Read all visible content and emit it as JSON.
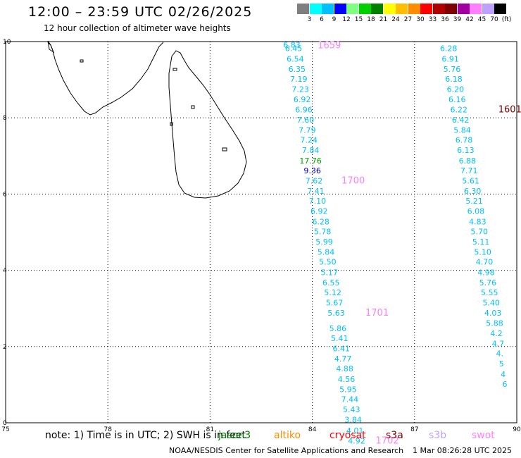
{
  "header": {
    "title": "12:00 – 23:59 UTC 02/26/2025",
    "subtitle": "12 hour collection of altimeter wave heights"
  },
  "colorbar": {
    "unit": "(ft)",
    "colors": [
      "#7f7f7f",
      "#00ffff",
      "#00bfff",
      "#0000ff",
      "#7fff7f",
      "#00d000",
      "#008000",
      "#ffff00",
      "#ffbf00",
      "#ff8c00",
      "#ff0000",
      "#b00000",
      "#800000",
      "#a000a0",
      "#ff80ff",
      "#c0a0ff",
      "#000000"
    ],
    "labels": [
      "3",
      "6",
      "9",
      "12",
      "15",
      "18",
      "21",
      "24",
      "27",
      "30",
      "33",
      "36",
      "39",
      "42",
      "45",
      "70"
    ]
  },
  "map": {
    "lon_ticks": [
      "75",
      "78",
      "81",
      "84",
      "87",
      "90"
    ],
    "lat_ticks": [
      "0",
      "2",
      "4",
      "6",
      "8",
      "10"
    ],
    "lon_range": [
      75,
      90
    ],
    "lat_range": [
      0,
      10
    ]
  },
  "tracks": [
    {
      "name": "track-west",
      "time_label": {
        "text": "1659",
        "lon": 84.5,
        "lat": 9.9,
        "color": "#ff80ff"
      },
      "points": [
        {
          "lon": 83.4,
          "lat": 9.92,
          "v": "6.83",
          "c": "#00bfff"
        },
        {
          "lon": 83.45,
          "lat": 9.82,
          "v": "6.45",
          "c": "#00bfff"
        },
        {
          "lon": 83.5,
          "lat": 9.55,
          "v": "6.54",
          "c": "#00bfff"
        },
        {
          "lon": 83.55,
          "lat": 9.28,
          "v": "6.35",
          "c": "#00bfff"
        },
        {
          "lon": 83.6,
          "lat": 9.02,
          "v": "7.19",
          "c": "#00bfff"
        },
        {
          "lon": 83.65,
          "lat": 8.75,
          "v": "7.23",
          "c": "#00bfff"
        },
        {
          "lon": 83.7,
          "lat": 8.48,
          "v": "6.92",
          "c": "#00bfff"
        },
        {
          "lon": 83.75,
          "lat": 8.22,
          "v": "6.96",
          "c": "#00bfff"
        },
        {
          "lon": 83.8,
          "lat": 7.95,
          "v": "7.60",
          "c": "#00bfff"
        },
        {
          "lon": 83.85,
          "lat": 7.68,
          "v": "7.79",
          "c": "#00bfff"
        },
        {
          "lon": 83.9,
          "lat": 7.42,
          "v": "7.24",
          "c": "#00bfff"
        },
        {
          "lon": 83.95,
          "lat": 7.15,
          "v": "7.84",
          "c": "#00bfff"
        },
        {
          "lon": 83.95,
          "lat": 6.88,
          "v": "17.76",
          "c": "#00a000"
        },
        {
          "lon": 84.0,
          "lat": 6.62,
          "v": "9.36",
          "c": "#0000cc"
        },
        {
          "lon": 84.05,
          "lat": 6.35,
          "v": "7.62",
          "c": "#00bfff"
        },
        {
          "lon": 84.1,
          "lat": 6.08,
          "v": "7.41",
          "c": "#00bfff"
        },
        {
          "lon": 84.15,
          "lat": 5.82,
          "v": "7.10",
          "c": "#00bfff"
        },
        {
          "lon": 84.2,
          "lat": 5.55,
          "v": "6.92",
          "c": "#00bfff"
        },
        {
          "lon": 84.25,
          "lat": 5.28,
          "v": "6.28",
          "c": "#00bfff"
        },
        {
          "lon": 84.3,
          "lat": 5.02,
          "v": "5.78",
          "c": "#00bfff"
        },
        {
          "lon": 84.35,
          "lat": 4.75,
          "v": "5.99",
          "c": "#00bfff"
        },
        {
          "lon": 84.4,
          "lat": 4.48,
          "v": "5.84",
          "c": "#00bfff"
        },
        {
          "lon": 84.45,
          "lat": 4.22,
          "v": "5.50",
          "c": "#00bfff"
        },
        {
          "lon": 84.5,
          "lat": 3.95,
          "v": "5.17",
          "c": "#00bfff"
        },
        {
          "lon": 84.55,
          "lat": 3.68,
          "v": "6.55",
          "c": "#00bfff"
        },
        {
          "lon": 84.6,
          "lat": 3.42,
          "v": "5.12",
          "c": "#00bfff"
        },
        {
          "lon": 84.65,
          "lat": 3.15,
          "v": "5.67",
          "c": "#00bfff"
        },
        {
          "lon": 84.7,
          "lat": 2.88,
          "v": "5.63",
          "c": "#00bfff"
        },
        {
          "lon": 84.75,
          "lat": 2.48,
          "v": "5.86",
          "c": "#00bfff"
        },
        {
          "lon": 84.8,
          "lat": 2.22,
          "v": "5.41",
          "c": "#00bfff"
        },
        {
          "lon": 84.85,
          "lat": 1.95,
          "v": "6.41",
          "c": "#00bfff"
        },
        {
          "lon": 84.9,
          "lat": 1.68,
          "v": "4.77",
          "c": "#00bfff"
        },
        {
          "lon": 84.95,
          "lat": 1.42,
          "v": "4.88",
          "c": "#00bfff"
        },
        {
          "lon": 85.0,
          "lat": 1.15,
          "v": "4.56",
          "c": "#00bfff"
        },
        {
          "lon": 85.05,
          "lat": 0.88,
          "v": "5.95",
          "c": "#00bfff"
        },
        {
          "lon": 85.1,
          "lat": 0.62,
          "v": "7.44",
          "c": "#00bfff"
        },
        {
          "lon": 85.15,
          "lat": 0.35,
          "v": "5.43",
          "c": "#00bfff"
        },
        {
          "lon": 85.2,
          "lat": 0.08,
          "v": "3.84",
          "c": "#00bfff"
        },
        {
          "lon": 85.25,
          "lat": -0.2,
          "v": "4.01",
          "c": "#00bfff"
        },
        {
          "lon": 85.3,
          "lat": -0.47,
          "v": "4.92",
          "c": "#00bfff"
        }
      ],
      "extra_labels": [
        {
          "text": "1700",
          "lon": 85.2,
          "lat": 6.35,
          "color": "#ff80ff"
        },
        {
          "text": "1701",
          "lon": 85.9,
          "lat": 2.88,
          "color": "#ff80ff"
        },
        {
          "text": "1702",
          "lon": 86.2,
          "lat": -0.47,
          "color": "#ff80ff"
        }
      ]
    },
    {
      "name": "track-east",
      "time_label": {
        "text": "1601",
        "lon": 89.8,
        "lat": 8.22,
        "color": "#800000"
      },
      "points": [
        {
          "lon": 88.0,
          "lat": 9.82,
          "v": "6.28",
          "c": "#00bfff"
        },
        {
          "lon": 88.05,
          "lat": 9.55,
          "v": "6.91",
          "c": "#00bfff"
        },
        {
          "lon": 88.1,
          "lat": 9.28,
          "v": "5.76",
          "c": "#00bfff"
        },
        {
          "lon": 88.15,
          "lat": 9.02,
          "v": "6.18",
          "c": "#00bfff"
        },
        {
          "lon": 88.2,
          "lat": 8.75,
          "v": "6.20",
          "c": "#00bfff"
        },
        {
          "lon": 88.25,
          "lat": 8.48,
          "v": "6.16",
          "c": "#00bfff"
        },
        {
          "lon": 88.3,
          "lat": 8.22,
          "v": "6.22",
          "c": "#00bfff"
        },
        {
          "lon": 88.35,
          "lat": 7.95,
          "v": "6.42",
          "c": "#00bfff"
        },
        {
          "lon": 88.4,
          "lat": 7.68,
          "v": "5.84",
          "c": "#00bfff"
        },
        {
          "lon": 88.45,
          "lat": 7.42,
          "v": "6.78",
          "c": "#00bfff"
        },
        {
          "lon": 88.5,
          "lat": 7.15,
          "v": "6.13",
          "c": "#00bfff"
        },
        {
          "lon": 88.55,
          "lat": 6.88,
          "v": "6.88",
          "c": "#00bfff"
        },
        {
          "lon": 88.6,
          "lat": 6.62,
          "v": "7.71",
          "c": "#00bfff"
        },
        {
          "lon": 88.65,
          "lat": 6.35,
          "v": "5.61",
          "c": "#00bfff"
        },
        {
          "lon": 88.7,
          "lat": 6.08,
          "v": "6.30",
          "c": "#00bfff"
        },
        {
          "lon": 88.75,
          "lat": 5.82,
          "v": "5.21",
          "c": "#00bfff"
        },
        {
          "lon": 88.8,
          "lat": 5.55,
          "v": "6.08",
          "c": "#00bfff"
        },
        {
          "lon": 88.85,
          "lat": 5.28,
          "v": "4.83",
          "c": "#00bfff"
        },
        {
          "lon": 88.9,
          "lat": 5.02,
          "v": "5.70",
          "c": "#00bfff"
        },
        {
          "lon": 88.95,
          "lat": 4.75,
          "v": "5.11",
          "c": "#00bfff"
        },
        {
          "lon": 89.0,
          "lat": 4.48,
          "v": "5.10",
          "c": "#00bfff"
        },
        {
          "lon": 89.05,
          "lat": 4.22,
          "v": "4.70",
          "c": "#00bfff"
        },
        {
          "lon": 89.1,
          "lat": 3.95,
          "v": "4.98",
          "c": "#00bfff"
        },
        {
          "lon": 89.15,
          "lat": 3.68,
          "v": "5.76",
          "c": "#00bfff"
        },
        {
          "lon": 89.2,
          "lat": 3.42,
          "v": "5.55",
          "c": "#00bfff"
        },
        {
          "lon": 89.25,
          "lat": 3.15,
          "v": "5.40",
          "c": "#00bfff"
        },
        {
          "lon": 89.3,
          "lat": 2.88,
          "v": "4.03",
          "c": "#00bfff"
        },
        {
          "lon": 89.35,
          "lat": 2.62,
          "v": "5.88",
          "c": "#00bfff"
        },
        {
          "lon": 89.4,
          "lat": 2.35,
          "v": "4.2",
          "c": "#00bfff"
        },
        {
          "lon": 89.45,
          "lat": 2.08,
          "v": "4.7",
          "c": "#00bfff"
        },
        {
          "lon": 89.5,
          "lat": 1.82,
          "v": "4.",
          "c": "#00bfff"
        },
        {
          "lon": 89.55,
          "lat": 1.55,
          "v": "5",
          "c": "#00bfff"
        },
        {
          "lon": 89.6,
          "lat": 1.28,
          "v": "4",
          "c": "#00bfff"
        },
        {
          "lon": 89.65,
          "lat": 1.02,
          "v": "6",
          "c": "#00bfff"
        }
      ],
      "extra_labels": []
    }
  ],
  "footer": {
    "note": "note:  1) Time is in UTC;  2) SWH is in feet",
    "legend": [
      {
        "name": "jason3",
        "color": "#008000"
      },
      {
        "name": "altiko",
        "color": "#ff8c00"
      },
      {
        "name": "cryosat",
        "color": "#ff0000"
      },
      {
        "name": "s3a",
        "color": "#800000"
      },
      {
        "name": "s3b",
        "color": "#c0a0ff"
      },
      {
        "name": "swot",
        "color": "#ff80ff"
      }
    ],
    "credit": "NOAA/NESDIS Center for Satellite Applications and Research",
    "timestamp": "1 Mar 08:26:28 UTC 2025"
  }
}
